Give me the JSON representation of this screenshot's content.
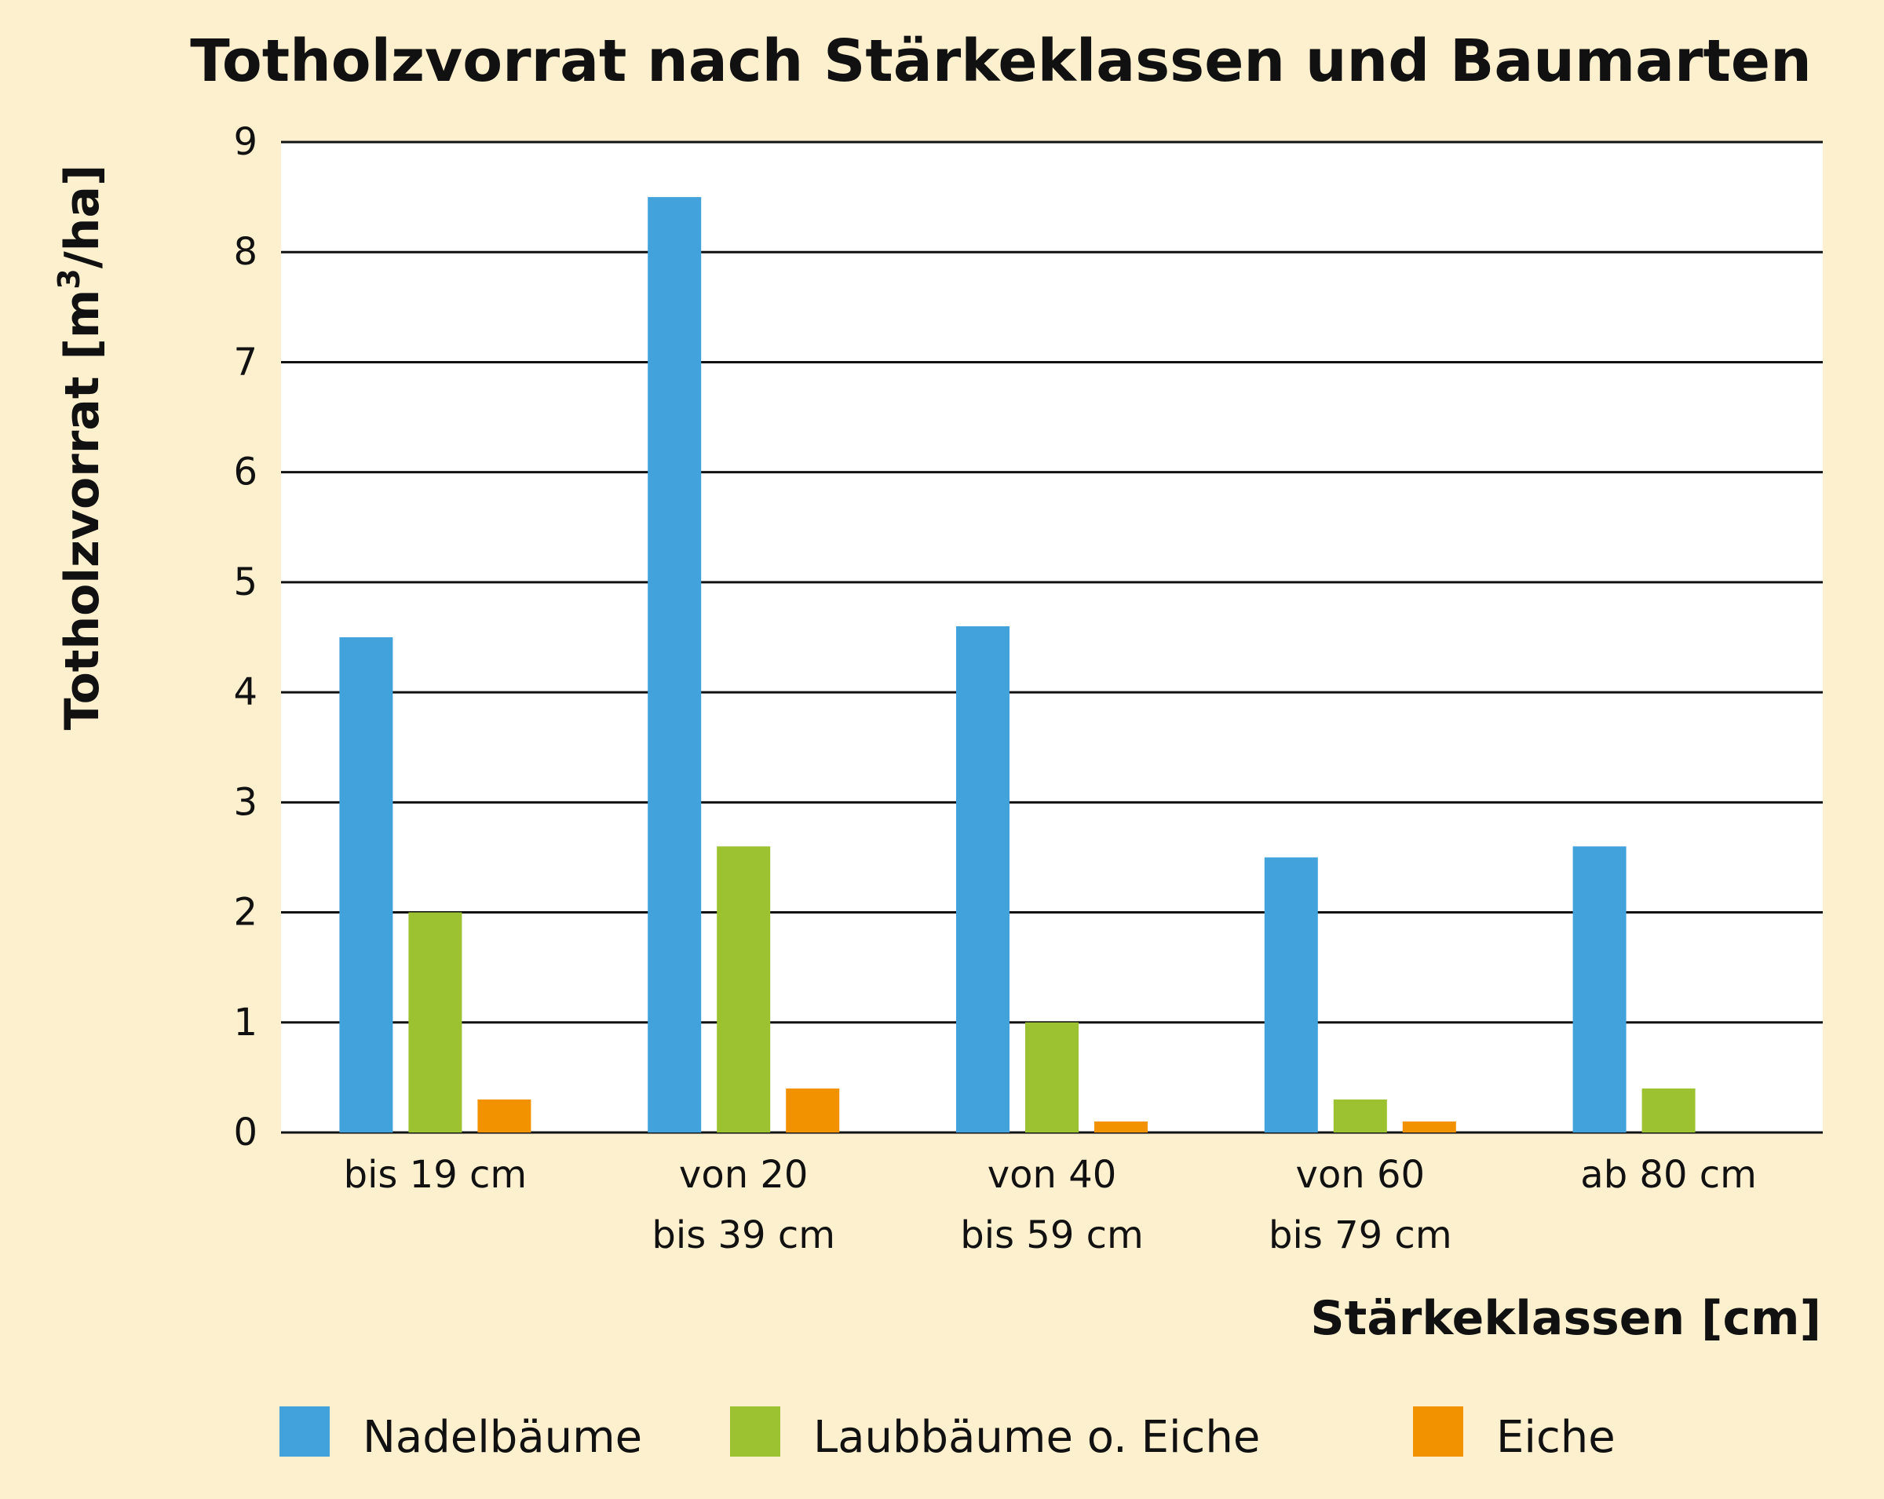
{
  "chart_data": {
    "type": "bar",
    "title": "Totholzvorrat nach Stärkeklassen und Baumarten",
    "ylabel_main": "Totholzvorrat [m",
    "ylabel_sup": "3",
    "ylabel_tail": "/ha]",
    "xlabel": "Stärkeklassen [cm]",
    "ylim": [
      0,
      9
    ],
    "yticks": [
      "0",
      "1",
      "2",
      "3",
      "4",
      "5",
      "6",
      "7",
      "8",
      "9"
    ],
    "grid": true,
    "legend_position": "bottom",
    "categories": [
      {
        "line1": "bis 19 cm",
        "line2": ""
      },
      {
        "line1": "von 20",
        "line2": "bis 39 cm"
      },
      {
        "line1": "von 40",
        "line2": "bis 59 cm"
      },
      {
        "line1": "von 60",
        "line2": "bis 79 cm"
      },
      {
        "line1": "ab 80 cm",
        "line2": ""
      }
    ],
    "series": [
      {
        "name": "Nadelbäume",
        "color": "#42a2dc",
        "values": [
          4.5,
          8.5,
          4.6,
          2.5,
          2.6
        ]
      },
      {
        "name": "Laubbäume o. Eiche",
        "color": "#9cc232",
        "values": [
          2.0,
          2.6,
          1.0,
          0.3,
          0.4
        ]
      },
      {
        "name": "Eiche",
        "color": "#f39200",
        "values": [
          0.3,
          0.4,
          0.1,
          0.1,
          0
        ]
      }
    ]
  }
}
